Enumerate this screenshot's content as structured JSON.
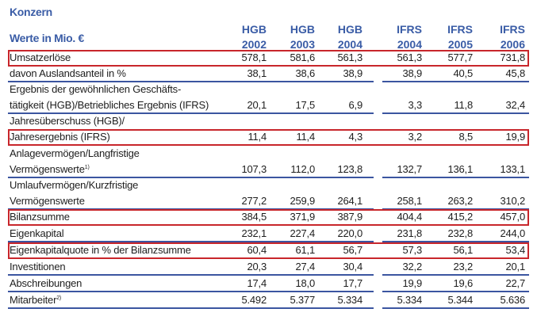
{
  "title": "Konzern",
  "unit_label": "Werte in Mio. €",
  "columns": [
    {
      "standard": "HGB",
      "year": "2002"
    },
    {
      "standard": "HGB",
      "year": "2003"
    },
    {
      "standard": "HGB",
      "year": "2004"
    },
    {
      "standard": "IFRS",
      "year": "2004"
    },
    {
      "standard": "IFRS",
      "year": "2005"
    },
    {
      "standard": "IFRS",
      "year": "2006"
    }
  ],
  "highlight_color": "#c8262b",
  "rows": [
    {
      "label": [
        "Umsatzerlöse"
      ],
      "values": [
        "578,1",
        "581,6",
        "561,3",
        "561,3",
        "577,7",
        "731,8"
      ],
      "highlighted": true
    },
    {
      "label": [
        "davon Auslandsanteil in %"
      ],
      "values": [
        "38,1",
        "38,6",
        "38,9",
        "38,9",
        "40,5",
        "45,8"
      ],
      "highlighted": false
    },
    {
      "label": [
        "Ergebnis der gewöhnlichen Geschäfts-",
        "tätigkeit (HGB)/Betriebliches Ergebnis (IFRS)"
      ],
      "values": [
        "20,1",
        "17,5",
        "6,9",
        "3,3",
        "11,8",
        "32,4"
      ],
      "highlighted": false
    },
    {
      "label": [
        "Jahresüberschuss (HGB)/",
        "Jahresergebnis (IFRS)"
      ],
      "values": [
        "11,4",
        "11,4",
        "4,3",
        "3,2",
        "8,5",
        "19,9"
      ],
      "highlighted": true
    },
    {
      "label": [
        "Anlagevermögen/Langfristige",
        "Vermögenswerte"
      ],
      "footnote": "1)",
      "values": [
        "107,3",
        "112,0",
        "123,8",
        "132,7",
        "136,1",
        "133,1"
      ],
      "highlighted": false
    },
    {
      "label": [
        "Umlaufvermögen/Kurzfristige",
        "Vermögenswerte"
      ],
      "values": [
        "277,2",
        "259,9",
        "264,1",
        "258,1",
        "263,2",
        "310,2"
      ],
      "highlighted": false
    },
    {
      "label": [
        "Bilanzsumme"
      ],
      "values": [
        "384,5",
        "371,9",
        "387,9",
        "404,4",
        "415,2",
        "457,0"
      ],
      "highlighted": true
    },
    {
      "label": [
        "Eigenkapital"
      ],
      "values": [
        "232,1",
        "227,4",
        "220,0",
        "231,8",
        "232,8",
        "244,0"
      ],
      "highlighted": false
    },
    {
      "label": [
        "Eigenkapitalquote in % der Bilanzsumme"
      ],
      "values": [
        "60,4",
        "61,1",
        "56,7",
        "57,3",
        "56,1",
        "53,4"
      ],
      "highlighted": true
    },
    {
      "label": [
        "Investitionen"
      ],
      "values": [
        "20,3",
        "27,4",
        "30,4",
        "32,2",
        "23,2",
        "20,1"
      ],
      "highlighted": false
    },
    {
      "label": [
        "Abschreibungen"
      ],
      "values": [
        "17,4",
        "18,0",
        "17,7",
        "19,9",
        "19,6",
        "22,7"
      ],
      "highlighted": false
    },
    {
      "label": [
        "Mitarbeiter"
      ],
      "footnote": "2)",
      "values": [
        "5.492",
        "5.377",
        "5.334",
        "5.334",
        "5.344",
        "5.636"
      ],
      "highlighted": false
    }
  ]
}
